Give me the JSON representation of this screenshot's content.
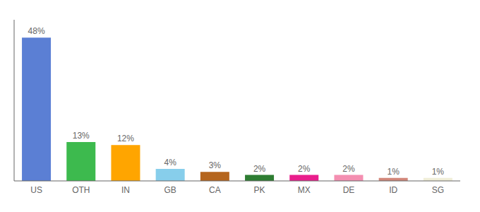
{
  "chart_data": {
    "type": "bar",
    "categories": [
      "US",
      "OTH",
      "IN",
      "GB",
      "CA",
      "PK",
      "MX",
      "DE",
      "ID",
      "SG"
    ],
    "values": [
      48,
      13,
      12,
      4,
      3,
      2,
      2,
      2,
      1,
      1
    ],
    "value_labels": [
      "48%",
      "13%",
      "12%",
      "4%",
      "3%",
      "2%",
      "2%",
      "2%",
      "1%",
      "1%"
    ],
    "colors": [
      "#5b7fd4",
      "#3dba4e",
      "#ffa500",
      "#87ceeb",
      "#b5651d",
      "#2e7d32",
      "#e91e8c",
      "#f48fb1",
      "#d2877a",
      "#f0eed8"
    ],
    "ylim": [
      0,
      54
    ],
    "data_labels": true,
    "tick_labels": "x",
    "grid": false
  }
}
